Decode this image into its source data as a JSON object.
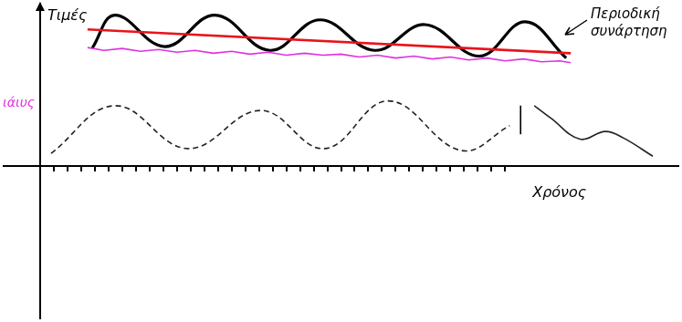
{
  "chart_data": {
    "type": "line",
    "xlabel": "Χρόνος",
    "ylabel": "Τιμές",
    "annotations": [
      {
        "text": "Περιοδική συνάρτηση",
        "color": "#000000"
      },
      {
        "text": "ιάιυς",
        "color": "#e030e0"
      }
    ],
    "xlim": [
      -4,
      70
    ],
    "ylim": [
      -16,
      17
    ],
    "xticks": [
      1.5,
      3,
      4.5,
      6,
      7.5,
      9,
      10.5,
      12,
      13.5,
      15,
      16.5,
      18,
      19.5,
      21,
      22.5,
      24,
      25.5,
      27,
      28.5,
      30,
      31.5,
      33,
      34.5,
      36,
      37.5,
      39,
      40.5,
      42,
      43.5,
      45,
      46.5,
      48,
      49.5,
      51
    ],
    "yticks": [
      0
    ],
    "grid": false,
    "tick_labels": false,
    "series": [
      {
        "color": "#e8141c",
        "line_style": "solid",
        "x": [
          5.2,
          58.2
        ],
        "values": [
          14.3,
          11.8
        ]
      },
      {
        "color": "#e030e0",
        "line_style": "solid",
        "x": [
          5.2,
          7,
          9,
          11,
          13,
          15,
          17,
          19,
          21,
          23,
          25,
          27,
          29,
          31,
          33,
          35,
          37,
          39,
          41,
          43,
          45,
          47,
          49,
          51,
          53,
          55,
          57,
          58.2
        ],
        "values": [
          12.4,
          12.1,
          12.3,
          12.0,
          12.2,
          11.9,
          12.1,
          11.8,
          12.0,
          11.7,
          11.9,
          11.6,
          11.8,
          11.6,
          11.7,
          11.4,
          11.6,
          11.3,
          11.5,
          11.2,
          11.4,
          11.1,
          11.3,
          11.0,
          11.2,
          10.9,
          11.0,
          10.8
        ]
      },
      {
        "color": "#000000",
        "line_style": "solid",
        "x": [
          5.7,
          8.2,
          13.7,
          19.2,
          25.2,
          30.7,
          36.7,
          42.2,
          48.2,
          53.2,
          57.7
        ],
        "values": [
          12.3,
          15.8,
          12.5,
          15.8,
          12.1,
          15.3,
          12.1,
          14.8,
          11.5,
          15.1,
          11.3
        ]
      },
      {
        "color": "#222222",
        "line_style": "dashed",
        "x": [
          1.2,
          8.2,
          16.2,
          24.2,
          31.2,
          38.2,
          46.2,
          51.5
        ],
        "values": [
          1.3,
          6.3,
          1.8,
          5.8,
          1.8,
          6.8,
          1.6,
          4.2
        ]
      },
      {
        "color": "#000000",
        "line_style": "solid",
        "x": [
          52.7,
          52.7
        ],
        "values": [
          6.3,
          3.3
        ]
      },
      {
        "color": "#222222",
        "line_style": "solid",
        "x": [
          54.2,
          56,
          59.2,
          62,
          64,
          67.2
        ],
        "values": [
          6.3,
          5.0,
          2.8,
          3.6,
          2.9,
          1.0
        ]
      }
    ]
  }
}
